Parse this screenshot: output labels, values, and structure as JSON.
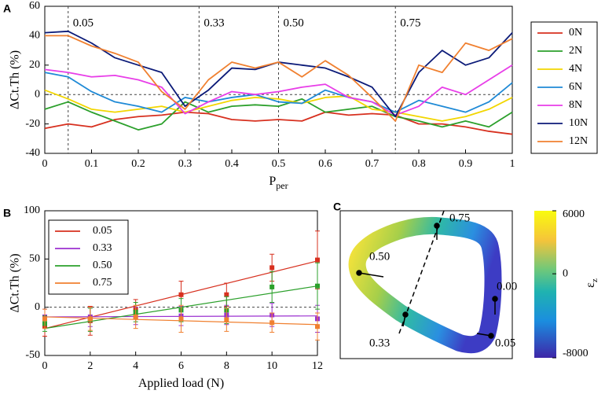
{
  "chart_data": [
    {
      "type": "line",
      "panel": "A",
      "ylabel": "ΔCt.Th (%)",
      "xlabel": "P",
      "xlabel_sub": "per",
      "x": [
        0,
        0.05,
        0.1,
        0.15,
        0.2,
        0.25,
        0.3,
        0.35,
        0.4,
        0.45,
        0.5,
        0.55,
        0.6,
        0.65,
        0.7,
        0.75,
        0.8,
        0.85,
        0.9,
        0.95,
        1
      ],
      "series": [
        {
          "name": "0N",
          "color": "#d7301f",
          "values": [
            -23,
            -20,
            -22,
            -17,
            -15,
            -14,
            -12,
            -13,
            -17,
            -18,
            -17,
            -18,
            -12,
            -14,
            -13,
            -14,
            -20,
            -20,
            -22,
            -25,
            -27
          ]
        },
        {
          "name": "2N",
          "color": "#2ca02c",
          "values": [
            -10,
            -5,
            -12,
            -18,
            -24,
            -20,
            -5,
            -12,
            -8,
            -7,
            -8,
            -3,
            -12,
            -10,
            -8,
            -15,
            -18,
            -22,
            -18,
            -22,
            -12
          ]
        },
        {
          "name": "4N",
          "color": "#f2d600",
          "values": [
            3,
            -3,
            -10,
            -12,
            -10,
            -8,
            -12,
            -8,
            -4,
            -2,
            -3,
            -6,
            -2,
            -1,
            -10,
            -12,
            -15,
            -18,
            -15,
            -10,
            -2
          ]
        },
        {
          "name": "6N",
          "color": "#1f8ad6",
          "values": [
            15,
            12,
            2,
            -5,
            -8,
            -12,
            -2,
            -5,
            -2,
            0,
            -5,
            -6,
            3,
            -2,
            -5,
            -12,
            -4,
            -8,
            -12,
            -5,
            8
          ]
        },
        {
          "name": "8N",
          "color": "#e83ee8",
          "values": [
            17,
            15,
            12,
            13,
            10,
            5,
            -13,
            -5,
            2,
            0,
            2,
            5,
            7,
            -2,
            -5,
            -14,
            -8,
            5,
            0,
            10,
            20
          ]
        },
        {
          "name": "10N",
          "color": "#0b1a78",
          "values": [
            42,
            43,
            35,
            25,
            20,
            15,
            -8,
            3,
            18,
            17,
            22,
            20,
            18,
            12,
            5,
            -15,
            15,
            30,
            20,
            25,
            42
          ]
        },
        {
          "name": "12N",
          "color": "#f08030",
          "values": [
            40,
            40,
            33,
            28,
            22,
            2,
            -10,
            10,
            22,
            18,
            22,
            12,
            23,
            13,
            -2,
            -18,
            20,
            15,
            35,
            30,
            38
          ]
        }
      ],
      "xlim": [
        0,
        1
      ],
      "xticks": [
        0,
        0.1,
        0.2,
        0.3,
        0.4,
        0.5,
        0.6,
        0.7,
        0.8,
        0.9,
        1
      ],
      "ylim": [
        -40,
        60
      ],
      "yticks": [
        -40,
        -20,
        0,
        20,
        40,
        60
      ],
      "hline": 0,
      "annotations": [
        {
          "x": 0.05,
          "label": "0.05",
          "color": "#d7301f"
        },
        {
          "x": 0.33,
          "label": "0.33",
          "color": "#9b30d0"
        },
        {
          "x": 0.5,
          "label": "0.50",
          "color": "#2ca02c"
        },
        {
          "x": 0.75,
          "label": "0.75",
          "color": "#f08030"
        }
      ],
      "legend": "outside-right"
    },
    {
      "type": "scatter",
      "panel": "B",
      "ylabel": "ΔCt.Th (%)",
      "xlabel": "Applied load (N)",
      "x": [
        0,
        2,
        4,
        6,
        8,
        10,
        12
      ],
      "series": [
        {
          "name": "0.05",
          "color": "#d7301f",
          "values": [
            -20,
            -14,
            -2,
            13,
            13,
            41,
            49
          ],
          "errors": [
            10,
            15,
            10,
            14,
            12,
            14,
            30
          ],
          "fit": [
            -22,
            48
          ]
        },
        {
          "name": "0.33",
          "color": "#9b30d0",
          "values": [
            -10,
            -10,
            -9,
            -9,
            -8,
            -8,
            -12
          ],
          "errors": [
            8,
            10,
            9,
            10,
            10,
            12,
            14
          ],
          "fit": [
            -10,
            -9
          ]
        },
        {
          "name": "0.50",
          "color": "#2ca02c",
          "values": [
            -17,
            -13,
            -5,
            -3,
            -3,
            21,
            22
          ],
          "errors": [
            8,
            12,
            10,
            12,
            14,
            16,
            24
          ],
          "fit": [
            -22,
            22
          ]
        },
        {
          "name": "0.75",
          "color": "#f08030",
          "values": [
            -12,
            -12,
            -10,
            -12,
            -13,
            -16,
            -20
          ],
          "errors": [
            10,
            12,
            12,
            14,
            12,
            10,
            14
          ],
          "fit": [
            -10,
            -18
          ]
        }
      ],
      "xlim": [
        0,
        12
      ],
      "xticks": [
        0,
        2,
        4,
        6,
        8,
        10,
        12
      ],
      "ylim": [
        -50,
        100
      ],
      "yticks": [
        -50,
        0,
        50,
        100
      ],
      "hline": 0,
      "legend": "upper-left"
    },
    {
      "type": "colormap",
      "panel": "C",
      "colorbar": {
        "clim": [
          -8000,
          6000
        ],
        "ticks": [
          6000,
          0,
          -8000
        ],
        "label": "ε",
        "label_sub": "z"
      },
      "annotations": [
        {
          "label": "0.75",
          "color": "#f08030"
        },
        {
          "label": "0.50",
          "color": "#2ca02c"
        },
        {
          "label": "0.00",
          "color": "#000000"
        },
        {
          "label": "0.33",
          "color": "#9b30d0"
        },
        {
          "label": "0.05",
          "color": "#d7301f"
        }
      ]
    }
  ]
}
